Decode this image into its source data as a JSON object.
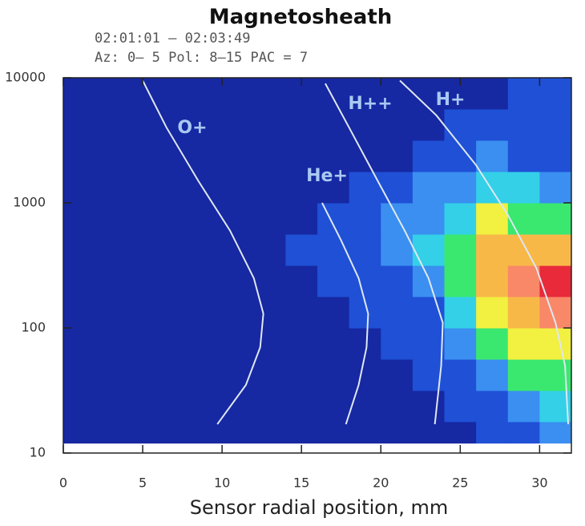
{
  "chart_data": {
    "type": "heatmap",
    "title": "Magnetosheath",
    "subtitle": [
      "02:01:01 – 02:03:49",
      "Az: 0– 5 Pol: 8–15 PAC = 7"
    ],
    "x_label": "Sensor radial position, mm",
    "xlim": [
      0,
      32
    ],
    "xticks": [
      0,
      5,
      10,
      15,
      20,
      25,
      30
    ],
    "ylim": [
      10,
      10000
    ],
    "yticks": [
      10,
      100,
      1000,
      10000
    ],
    "y_scale": "log",
    "x_bins": [
      0,
      2,
      4,
      6,
      8,
      10,
      12,
      14,
      16,
      18,
      20,
      22,
      24,
      26,
      28,
      30,
      32
    ],
    "y_bins": [
      12,
      17.8,
      31.6,
      56.2,
      100,
      178,
      316,
      562,
      1000,
      1778,
      3162,
      5623,
      10000
    ],
    "colors": [
      "#1628a2",
      "#1f50d6",
      "#3a8ff0",
      "#33d0e8",
      "#3ae870",
      "#f2f040",
      "#f8b848",
      "#f88868",
      "#e82a3a"
    ],
    "z": [
      [
        0,
        0,
        0,
        0,
        0,
        0,
        0,
        0,
        0,
        0,
        0,
        0,
        0,
        1,
        1,
        2
      ],
      [
        0,
        0,
        0,
        0,
        0,
        0,
        0,
        0,
        0,
        0,
        0,
        0,
        1,
        1,
        2,
        3
      ],
      [
        0,
        0,
        0,
        0,
        0,
        0,
        0,
        0,
        0,
        0,
        0,
        1,
        1,
        2,
        4,
        4
      ],
      [
        0,
        0,
        0,
        0,
        0,
        0,
        0,
        0,
        0,
        0,
        1,
        1,
        2,
        4,
        5,
        5
      ],
      [
        0,
        0,
        0,
        0,
        0,
        0,
        0,
        0,
        0,
        1,
        1,
        1,
        3,
        5,
        6,
        7
      ],
      [
        0,
        0,
        0,
        0,
        0,
        0,
        0,
        0,
        1,
        1,
        1,
        2,
        4,
        6,
        7,
        8
      ],
      [
        0,
        0,
        0,
        0,
        0,
        0,
        0,
        1,
        1,
        1,
        2,
        3,
        4,
        6,
        6,
        6
      ],
      [
        0,
        0,
        0,
        0,
        0,
        0,
        0,
        0,
        1,
        1,
        2,
        2,
        3,
        5,
        4,
        4
      ],
      [
        0,
        0,
        0,
        0,
        0,
        0,
        0,
        0,
        0,
        1,
        1,
        2,
        2,
        3,
        3,
        2
      ],
      [
        0,
        0,
        0,
        0,
        0,
        0,
        0,
        0,
        0,
        0,
        0,
        1,
        1,
        2,
        1,
        1
      ],
      [
        0,
        0,
        0,
        0,
        0,
        0,
        0,
        0,
        0,
        0,
        0,
        0,
        1,
        1,
        1,
        1
      ],
      [
        0,
        0,
        0,
        0,
        0,
        0,
        0,
        0,
        0,
        0,
        0,
        0,
        0,
        0,
        1,
        1
      ]
    ],
    "curves": [
      {
        "name": "O+",
        "x": [
          5.0,
          6.5,
          8.5,
          10.5,
          12,
          12.6,
          12.4,
          11.5,
          9.7
        ],
        "y": [
          9500,
          4000,
          1500,
          600,
          250,
          130,
          70,
          35,
          17
        ]
      },
      {
        "name": "He+",
        "x": [
          16.3,
          17.5,
          18.6,
          19.2,
          19.1,
          18.6,
          17.8
        ],
        "y": [
          1000,
          500,
          250,
          130,
          70,
          35,
          17
        ]
      },
      {
        "name": "H++",
        "x": [
          16.5,
          18,
          19.8,
          21.5,
          23,
          23.9,
          23.8,
          23.4
        ],
        "y": [
          9000,
          4000,
          1500,
          600,
          250,
          110,
          50,
          17
        ]
      },
      {
        "name": "H+",
        "x": [
          21.2,
          23.5,
          26,
          28,
          29.8,
          31,
          31.6,
          31.8
        ],
        "y": [
          9500,
          5000,
          2000,
          800,
          300,
          110,
          50,
          17
        ]
      }
    ],
    "curve_color": "#dfe8f2",
    "label_color": "#a9c9f2"
  }
}
